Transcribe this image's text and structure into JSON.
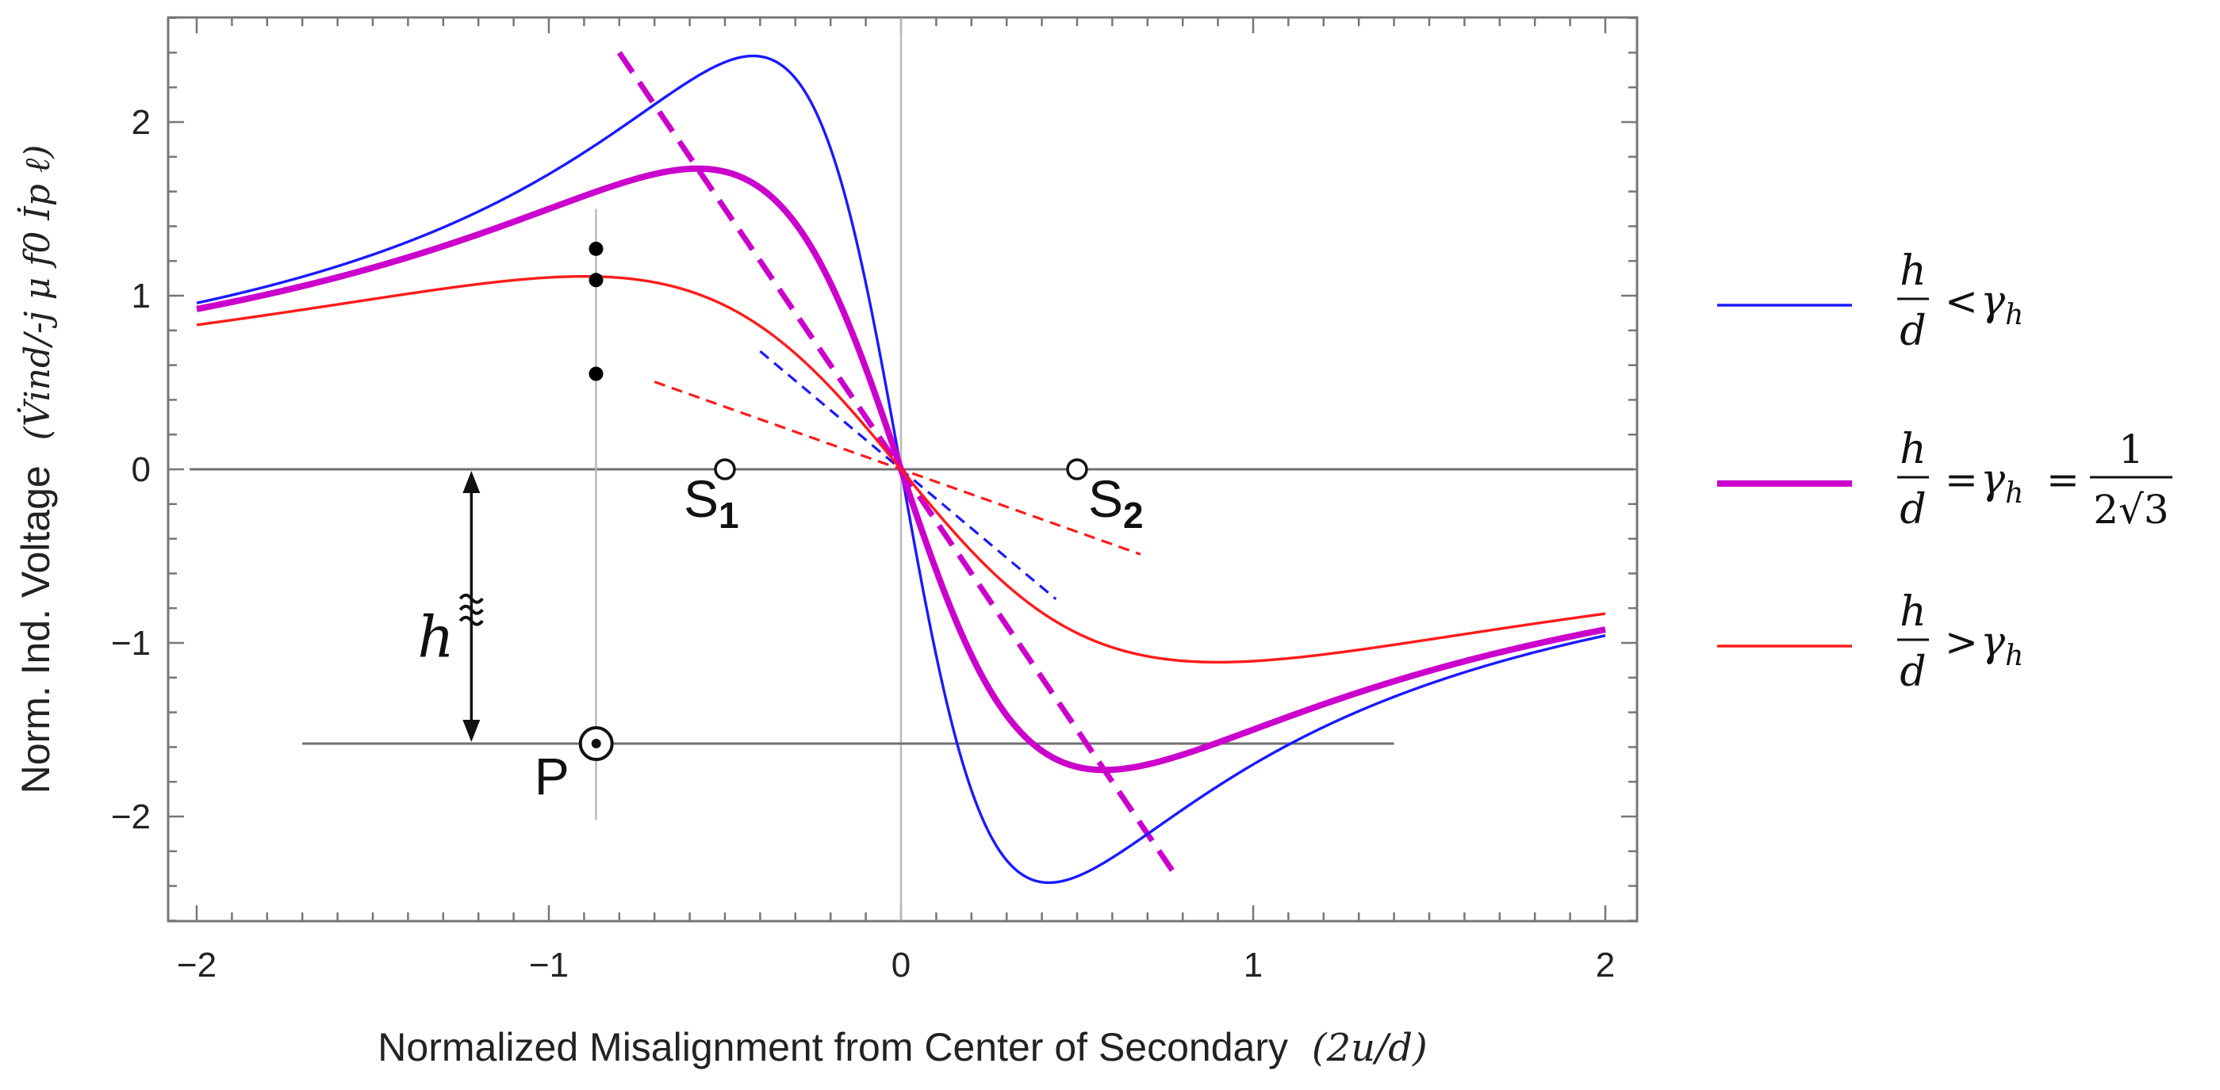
{
  "chart_data": {
    "type": "line",
    "title": "",
    "xlabel": "Normalized Misalignment from Center of Secondary (2u/d)",
    "xlabel_plain": "Normalized Misalignment from Center of Secondary",
    "xlabel_math": "(2u/d)",
    "ylabel": "Norm. Ind. Voltage (V̇ind/-j μ f0 İp ℓ)",
    "ylabel_plain": "Norm. Ind. Voltage",
    "ylabel_math": "(V̇ind/-j μ f0 İp ℓ)",
    "xlim": [
      -2.02,
      2.08
    ],
    "ylim": [
      -2.6,
      2.6
    ],
    "xticks": [
      -2,
      -1,
      0,
      1,
      2
    ],
    "yticks": [
      -2,
      -1,
      0,
      1,
      2
    ],
    "xtick_labels": [
      "−2",
      "−1",
      "0",
      "1",
      "2"
    ],
    "ytick_labels": [
      "−2",
      "−1",
      "0",
      "1",
      "2"
    ],
    "grid": false,
    "legend_position": "right",
    "curve_formula": "y = -2x / (x^2 + 4 (h/d)^2)",
    "series": [
      {
        "name": "h/d < γh",
        "h_over_d": 0.21,
        "color": "#1a1aff",
        "style": "solid",
        "weight": "thin",
        "legend": {
          "num": "h",
          "den": "d",
          "rel": "<",
          "rhs": "γ",
          "rhs_sub": "h"
        }
      },
      {
        "name": "h/d = γh = 1/(2√3)",
        "h_over_d": 0.2887,
        "color": "#cc00cc",
        "style": "solid",
        "weight": "thick",
        "legend": {
          "num": "h",
          "den": "d",
          "rel": "=",
          "rhs": "γ",
          "rhs_sub": "h",
          "rel2": "=",
          "frac_num": "1",
          "frac_den": "2√3"
        }
      },
      {
        "name": "h/d > γh",
        "h_over_d": 0.45,
        "color": "#ff1a1a",
        "style": "solid",
        "weight": "thin",
        "legend": {
          "num": "h",
          "den": "d",
          "rel": ">",
          "rhs": "γ",
          "rhs_sub": "h"
        }
      }
    ],
    "tangent_lines": [
      {
        "slope": -1.7,
        "x_range": [
          -0.4,
          0.44
        ],
        "color": "#1a1aff",
        "style": "dashed"
      },
      {
        "slope": -3.0,
        "x_range": [
          -0.8,
          0.78
        ],
        "color": "#cc00cc",
        "style": "dashed-thick"
      },
      {
        "slope": -0.72,
        "x_range": [
          -0.7,
          0.68
        ],
        "color": "#ff1a1a",
        "style": "dashed"
      }
    ],
    "reference_lines": [
      {
        "orientation": "vertical",
        "x": 0,
        "y_range": [
          -2.6,
          2.6
        ]
      },
      {
        "orientation": "horizontal",
        "y": 0,
        "x_range": [
          -2.02,
          2.08
        ]
      },
      {
        "orientation": "horizontal",
        "y": -1.58,
        "x_range": [
          -1.7,
          1.4
        ]
      },
      {
        "orientation": "vertical",
        "x": -0.866,
        "y_range": [
          -2.02,
          1.5
        ]
      }
    ],
    "marked_points": [
      {
        "x": -0.866,
        "y": 1.27
      },
      {
        "x": -0.866,
        "y": 1.09
      },
      {
        "x": -0.866,
        "y": 0.55
      }
    ],
    "annotations": [
      {
        "text": "S",
        "sub": "1",
        "x": -0.5,
        "y": 0,
        "marker": "open-circle"
      },
      {
        "text": "S",
        "sub": "2",
        "x": 0.5,
        "y": 0,
        "marker": "open-circle"
      },
      {
        "text": "P",
        "x": -0.87,
        "y": -1.58,
        "marker": "dot-circle"
      },
      {
        "text": "h",
        "x": -1.22,
        "y1": 0,
        "y2": -1.58,
        "marker": "double-arrow"
      }
    ]
  }
}
